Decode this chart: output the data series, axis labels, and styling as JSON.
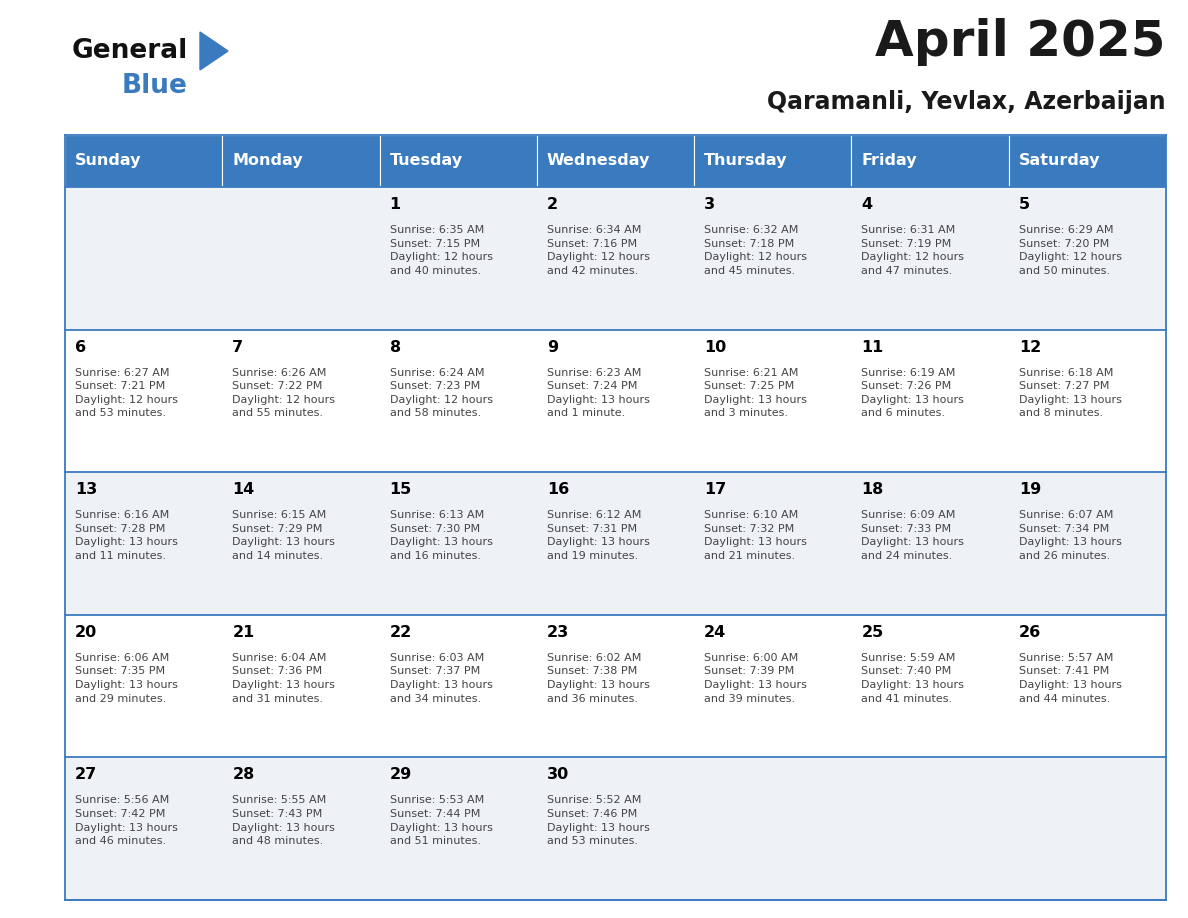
{
  "title": "April 2025",
  "subtitle": "Qaramanli, Yevlax, Azerbaijan",
  "header_color": "#3a7abf",
  "header_text_color": "#ffffff",
  "weekdays": [
    "Sunday",
    "Monday",
    "Tuesday",
    "Wednesday",
    "Thursday",
    "Friday",
    "Saturday"
  ],
  "row_bg_odd": "#eef2f7",
  "row_bg_even": "#ffffff",
  "cell_border_color": "#3a7abf",
  "day_number_color": "#000000",
  "info_text_color": "#444444",
  "title_color": "#1a1a1a",
  "subtitle_color": "#1a1a1a",
  "weeks": [
    [
      {
        "day": "",
        "info": ""
      },
      {
        "day": "",
        "info": ""
      },
      {
        "day": "1",
        "info": "Sunrise: 6:35 AM\nSunset: 7:15 PM\nDaylight: 12 hours\nand 40 minutes."
      },
      {
        "day": "2",
        "info": "Sunrise: 6:34 AM\nSunset: 7:16 PM\nDaylight: 12 hours\nand 42 minutes."
      },
      {
        "day": "3",
        "info": "Sunrise: 6:32 AM\nSunset: 7:18 PM\nDaylight: 12 hours\nand 45 minutes."
      },
      {
        "day": "4",
        "info": "Sunrise: 6:31 AM\nSunset: 7:19 PM\nDaylight: 12 hours\nand 47 minutes."
      },
      {
        "day": "5",
        "info": "Sunrise: 6:29 AM\nSunset: 7:20 PM\nDaylight: 12 hours\nand 50 minutes."
      }
    ],
    [
      {
        "day": "6",
        "info": "Sunrise: 6:27 AM\nSunset: 7:21 PM\nDaylight: 12 hours\nand 53 minutes."
      },
      {
        "day": "7",
        "info": "Sunrise: 6:26 AM\nSunset: 7:22 PM\nDaylight: 12 hours\nand 55 minutes."
      },
      {
        "day": "8",
        "info": "Sunrise: 6:24 AM\nSunset: 7:23 PM\nDaylight: 12 hours\nand 58 minutes."
      },
      {
        "day": "9",
        "info": "Sunrise: 6:23 AM\nSunset: 7:24 PM\nDaylight: 13 hours\nand 1 minute."
      },
      {
        "day": "10",
        "info": "Sunrise: 6:21 AM\nSunset: 7:25 PM\nDaylight: 13 hours\nand 3 minutes."
      },
      {
        "day": "11",
        "info": "Sunrise: 6:19 AM\nSunset: 7:26 PM\nDaylight: 13 hours\nand 6 minutes."
      },
      {
        "day": "12",
        "info": "Sunrise: 6:18 AM\nSunset: 7:27 PM\nDaylight: 13 hours\nand 8 minutes."
      }
    ],
    [
      {
        "day": "13",
        "info": "Sunrise: 6:16 AM\nSunset: 7:28 PM\nDaylight: 13 hours\nand 11 minutes."
      },
      {
        "day": "14",
        "info": "Sunrise: 6:15 AM\nSunset: 7:29 PM\nDaylight: 13 hours\nand 14 minutes."
      },
      {
        "day": "15",
        "info": "Sunrise: 6:13 AM\nSunset: 7:30 PM\nDaylight: 13 hours\nand 16 minutes."
      },
      {
        "day": "16",
        "info": "Sunrise: 6:12 AM\nSunset: 7:31 PM\nDaylight: 13 hours\nand 19 minutes."
      },
      {
        "day": "17",
        "info": "Sunrise: 6:10 AM\nSunset: 7:32 PM\nDaylight: 13 hours\nand 21 minutes."
      },
      {
        "day": "18",
        "info": "Sunrise: 6:09 AM\nSunset: 7:33 PM\nDaylight: 13 hours\nand 24 minutes."
      },
      {
        "day": "19",
        "info": "Sunrise: 6:07 AM\nSunset: 7:34 PM\nDaylight: 13 hours\nand 26 minutes."
      }
    ],
    [
      {
        "day": "20",
        "info": "Sunrise: 6:06 AM\nSunset: 7:35 PM\nDaylight: 13 hours\nand 29 minutes."
      },
      {
        "day": "21",
        "info": "Sunrise: 6:04 AM\nSunset: 7:36 PM\nDaylight: 13 hours\nand 31 minutes."
      },
      {
        "day": "22",
        "info": "Sunrise: 6:03 AM\nSunset: 7:37 PM\nDaylight: 13 hours\nand 34 minutes."
      },
      {
        "day": "23",
        "info": "Sunrise: 6:02 AM\nSunset: 7:38 PM\nDaylight: 13 hours\nand 36 minutes."
      },
      {
        "day": "24",
        "info": "Sunrise: 6:00 AM\nSunset: 7:39 PM\nDaylight: 13 hours\nand 39 minutes."
      },
      {
        "day": "25",
        "info": "Sunrise: 5:59 AM\nSunset: 7:40 PM\nDaylight: 13 hours\nand 41 minutes."
      },
      {
        "day": "26",
        "info": "Sunrise: 5:57 AM\nSunset: 7:41 PM\nDaylight: 13 hours\nand 44 minutes."
      }
    ],
    [
      {
        "day": "27",
        "info": "Sunrise: 5:56 AM\nSunset: 7:42 PM\nDaylight: 13 hours\nand 46 minutes."
      },
      {
        "day": "28",
        "info": "Sunrise: 5:55 AM\nSunset: 7:43 PM\nDaylight: 13 hours\nand 48 minutes."
      },
      {
        "day": "29",
        "info": "Sunrise: 5:53 AM\nSunset: 7:44 PM\nDaylight: 13 hours\nand 51 minutes."
      },
      {
        "day": "30",
        "info": "Sunrise: 5:52 AM\nSunset: 7:46 PM\nDaylight: 13 hours\nand 53 minutes."
      },
      {
        "day": "",
        "info": ""
      },
      {
        "day": "",
        "info": ""
      },
      {
        "day": "",
        "info": ""
      }
    ]
  ],
  "logo_triangle_color": "#3a7abf",
  "fig_width": 11.88,
  "fig_height": 9.18,
  "dpi": 100
}
